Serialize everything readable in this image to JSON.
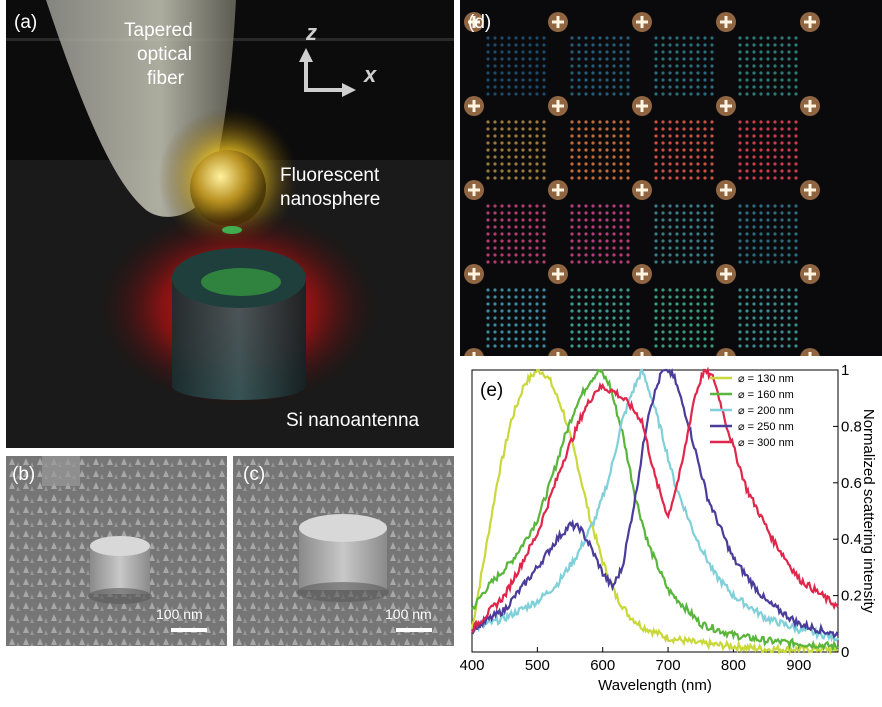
{
  "panel_a": {
    "label": "(a)",
    "fiber_text_1": "Tapered",
    "fiber_text_2": "optical",
    "fiber_text_3": "fiber",
    "axis_z": "z",
    "axis_x": "x",
    "sphere_text_1": "Fluorescent",
    "sphere_text_2": "nanosphere",
    "antenna_text": "Si nanoantenna"
  },
  "panel_b": {
    "label": "(b)",
    "scale": "100 nm"
  },
  "panel_c": {
    "label": "(c)",
    "scale": "100 nm"
  },
  "panel_d": {
    "label": "(d)",
    "grid_colors": [
      [
        "#1e4a6a",
        "#245c78",
        "#2a6b7c",
        "#2c7a76"
      ],
      [
        "#9a7a3c",
        "#c06a3c",
        "#c85044",
        "#c83c4c"
      ],
      [
        "#b03c70",
        "#b43c7a",
        "#3c7a88",
        "#2c6a7c"
      ],
      [
        "#3c8a9c",
        "#3c9a8c",
        "#3c9a7c",
        "#3c8a8c"
      ]
    ]
  },
  "chart_data": {
    "type": "line",
    "panel_label": "(e)",
    "xlabel": "Wavelength (nm)",
    "ylabel": "Normalized scattering intensity",
    "xlim": [
      400,
      960
    ],
    "ylim": [
      0,
      1
    ],
    "xticks": [
      "400",
      "500",
      "600",
      "700",
      "800",
      "900"
    ],
    "xtick_values": [
      400,
      500,
      600,
      700,
      800,
      900
    ],
    "yticks": [
      "0",
      "0.2",
      "0.4",
      "0.6",
      "0.8",
      "1"
    ],
    "ytick_values": [
      0,
      0.2,
      0.4,
      0.6,
      0.8,
      1
    ],
    "legend_position": "top-right",
    "series": [
      {
        "name": "⌀ = 130 nm",
        "color": "#c9d83a",
        "x": [
          400,
          420,
          440,
          460,
          480,
          500,
          510,
          520,
          540,
          560,
          580,
          600,
          620,
          640,
          660,
          680,
          700,
          750,
          800,
          850,
          900,
          960
        ],
        "y": [
          0.08,
          0.35,
          0.62,
          0.82,
          0.95,
          1.0,
          0.99,
          0.96,
          0.85,
          0.68,
          0.48,
          0.32,
          0.2,
          0.13,
          0.09,
          0.07,
          0.05,
          0.03,
          0.02,
          0.01,
          0.01,
          0.01
        ]
      },
      {
        "name": "⌀ = 160 nm",
        "color": "#5ab53c",
        "x": [
          400,
          420,
          440,
          460,
          480,
          500,
          520,
          540,
          560,
          580,
          595,
          610,
          630,
          650,
          670,
          700,
          750,
          800,
          850,
          900,
          960
        ],
        "y": [
          0.15,
          0.22,
          0.27,
          0.32,
          0.39,
          0.47,
          0.6,
          0.75,
          0.88,
          0.96,
          1.0,
          0.95,
          0.78,
          0.55,
          0.38,
          0.22,
          0.1,
          0.06,
          0.04,
          0.03,
          0.02
        ]
      },
      {
        "name": "⌀ = 200 nm",
        "color": "#7fd0d8",
        "x": [
          400,
          450,
          500,
          530,
          560,
          590,
          610,
          630,
          645,
          660,
          675,
          690,
          710,
          740,
          770,
          800,
          850,
          900,
          960
        ],
        "y": [
          0.08,
          0.12,
          0.18,
          0.24,
          0.34,
          0.48,
          0.62,
          0.82,
          0.92,
          1.0,
          0.9,
          0.78,
          0.6,
          0.42,
          0.28,
          0.2,
          0.12,
          0.08,
          0.05
        ]
      },
      {
        "name": "⌀ = 250 nm",
        "color": "#4a3c9a",
        "x": [
          400,
          450,
          500,
          530,
          550,
          565,
          580,
          600,
          615,
          630,
          650,
          670,
          690,
          700,
          710,
          730,
          760,
          800,
          850,
          900,
          960
        ],
        "y": [
          0.08,
          0.15,
          0.3,
          0.4,
          0.45,
          0.44,
          0.38,
          0.28,
          0.23,
          0.3,
          0.55,
          0.85,
          0.99,
          1.0,
          0.97,
          0.82,
          0.55,
          0.33,
          0.18,
          0.1,
          0.06
        ]
      },
      {
        "name": "⌀ = 300 nm",
        "color": "#e0264a",
        "x": [
          400,
          450,
          500,
          540,
          570,
          590,
          600,
          620,
          640,
          660,
          680,
          700,
          720,
          740,
          755,
          770,
          790,
          820,
          860,
          900,
          960
        ],
        "y": [
          0.08,
          0.2,
          0.42,
          0.68,
          0.85,
          0.93,
          0.94,
          0.92,
          0.88,
          0.82,
          0.62,
          0.48,
          0.65,
          0.9,
          1.0,
          0.97,
          0.8,
          0.58,
          0.4,
          0.26,
          0.16
        ]
      }
    ]
  }
}
